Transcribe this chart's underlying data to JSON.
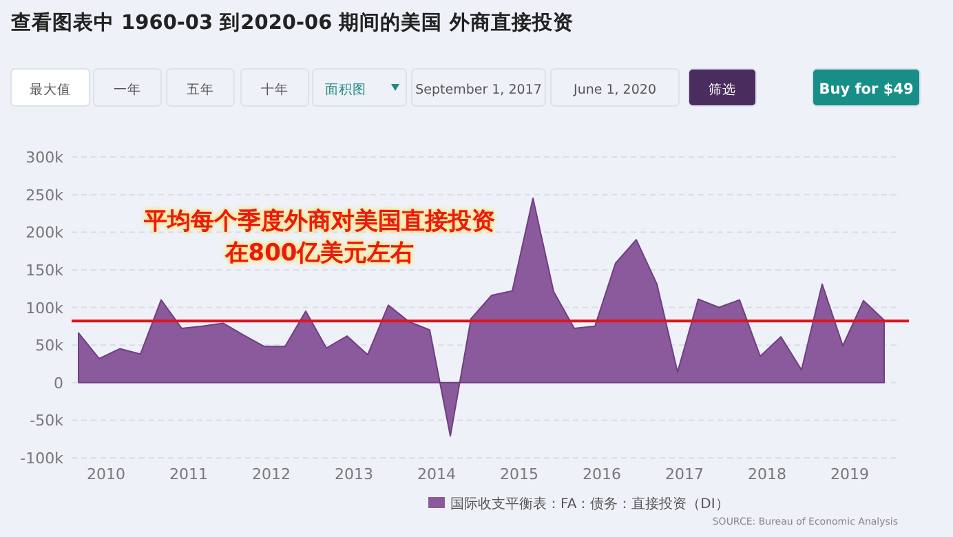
{
  "chart_data": {
    "type": "area",
    "title": "查看图表中 1960-03 到2020-06 期间的美国 外商直接投资",
    "x": [
      "2009-09",
      "2009-12",
      "2010-03",
      "2010-06",
      "2010-09",
      "2010-12",
      "2011-03",
      "2011-06",
      "2011-09",
      "2011-12",
      "2012-03",
      "2012-06",
      "2012-09",
      "2012-12",
      "2013-03",
      "2013-06",
      "2013-09",
      "2013-12",
      "2014-03",
      "2014-06",
      "2014-09",
      "2014-12",
      "2015-03",
      "2015-06",
      "2015-09",
      "2015-12",
      "2016-03",
      "2016-06",
      "2016-09",
      "2016-12",
      "2017-03",
      "2017-06",
      "2017-09",
      "2017-12",
      "2018-03",
      "2018-06",
      "2018-09",
      "2018-12",
      "2019-03",
      "2019-06"
    ],
    "series": [
      {
        "name": "国际收支平衡表：FA：债务：直接投资（DI）",
        "color": "#8b5a9c",
        "values": [
          66,
          32,
          45,
          38,
          110,
          72,
          75,
          79,
          63,
          48,
          48,
          95,
          46,
          62,
          37,
          103,
          81,
          70,
          -71,
          85,
          116,
          122,
          245,
          121,
          72,
          75,
          159,
          190,
          131,
          14,
          111,
          100,
          110,
          35,
          61,
          17,
          131,
          49,
          109,
          83
        ]
      }
    ],
    "xlim": [
      "2009-08",
      "2019-08"
    ],
    "xticks": [
      "2010",
      "2011",
      "2012",
      "2013",
      "2014",
      "2015",
      "2016",
      "2017",
      "2018",
      "2019"
    ],
    "ylim": [
      -100,
      300
    ],
    "yticks": [
      {
        "value": -100,
        "label": "-100k"
      },
      {
        "value": -50,
        "label": "-50k"
      },
      0,
      {
        "value": 50,
        "label": "50k"
      },
      {
        "value": 100,
        "label": "100k"
      },
      {
        "value": 150,
        "label": "150k"
      },
      {
        "value": 200,
        "label": "200k"
      },
      {
        "value": 250,
        "label": "250k"
      },
      {
        "value": 300,
        "label": "300k"
      }
    ],
    "grid": "y",
    "legend": "bottom",
    "ref_lines": [
      {
        "axis": "y",
        "value": 82,
        "color": "#e0141e"
      }
    ],
    "annotations": [
      "平均每个季度外商对美国直接投资在800亿美元左右",
      "SOURCE: Bureau of Economic Analysis",
      "最大值",
      "一年",
      "五年",
      "十年",
      "面积图",
      "September 1, 2017",
      "June 1, 2020",
      "筛选",
      "Buy for $49"
    ]
  }
}
